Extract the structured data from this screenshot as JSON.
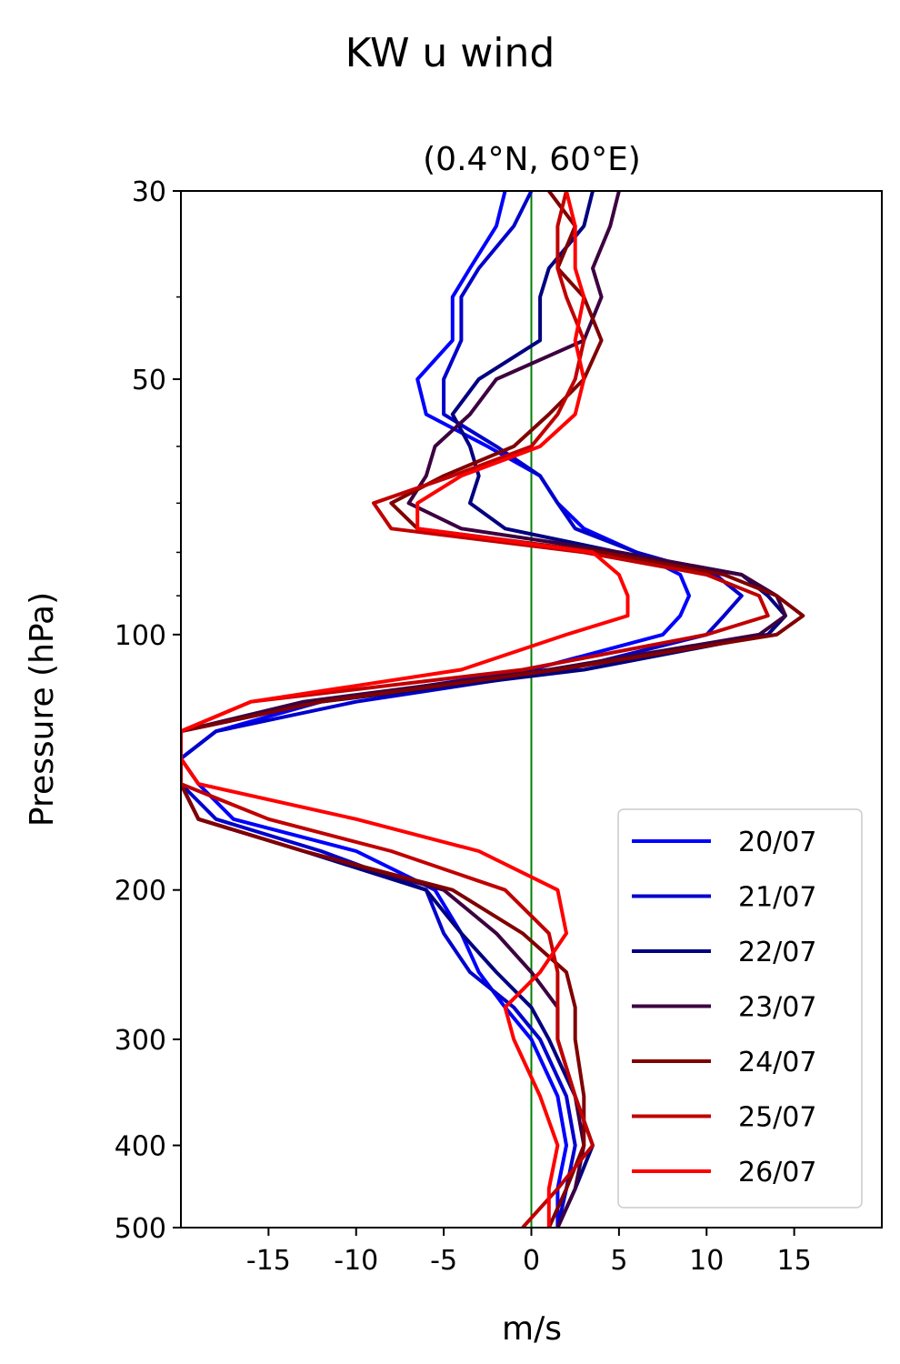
{
  "chart_data": {
    "type": "line",
    "title": "KW u wind",
    "subtitle": "(0.4°N, 60°E)",
    "xlabel": "m/s",
    "ylabel": "Pressure (hPa)",
    "xlim": [
      -20,
      20
    ],
    "ylim": [
      500,
      30
    ],
    "yscale": "log",
    "x_ticks": [
      -15,
      -10,
      -5,
      0,
      5,
      10,
      15
    ],
    "x_tick_labels": [
      "-15",
      "-10",
      "-5",
      "0",
      "5",
      "10",
      "15"
    ],
    "y_ticks": [
      30,
      50,
      100,
      200,
      300,
      400,
      500
    ],
    "y_tick_labels": [
      "30",
      "50",
      "100",
      "200",
      "300",
      "400",
      "500"
    ],
    "y_minor_ticks": [
      40,
      60,
      70,
      80,
      90
    ],
    "grid": false,
    "reference_line": {
      "x": 0,
      "color": "#008000"
    },
    "legend": {
      "position": "bottom-right"
    },
    "pressure": [
      30,
      33,
      37,
      40,
      45,
      50,
      55,
      60,
      65,
      70,
      75,
      80,
      85,
      90,
      95,
      100,
      110,
      120,
      130,
      140,
      150,
      165,
      180,
      200,
      225,
      250,
      275,
      300,
      350,
      400,
      450,
      500
    ],
    "series": [
      {
        "name": "20/07",
        "color": "#0000ff",
        "values": [
          -1.5,
          -2.0,
          -3.5,
          -4.5,
          -4.5,
          -6.5,
          -6.0,
          -2.5,
          0.5,
          1.5,
          3.0,
          6.0,
          8.5,
          9.0,
          8.5,
          7.5,
          0.0,
          -12.0,
          -18.0,
          -20.0,
          -19.0,
          -17.0,
          -10.0,
          -5.5,
          -4.0,
          -3.0,
          -1.5,
          0.0,
          1.5,
          2.0,
          1.5,
          1.5
        ]
      },
      {
        "name": "21/07",
        "color": "#0000cc",
        "values": [
          0.0,
          -1.0,
          -3.0,
          -4.0,
          -4.0,
          -5.0,
          -5.0,
          -2.0,
          0.5,
          1.5,
          2.5,
          6.0,
          10.5,
          12.0,
          11.0,
          10.0,
          2.0,
          -10.0,
          -18.0,
          -20.0,
          -20.0,
          -18.0,
          -12.0,
          -6.0,
          -5.0,
          -3.5,
          -1.0,
          0.5,
          2.0,
          2.5,
          2.0,
          1.5
        ]
      },
      {
        "name": "22/07",
        "color": "#000080",
        "values": [
          3.5,
          3.0,
          1.0,
          0.5,
          0.5,
          -3.0,
          -4.5,
          -3.5,
          -3.0,
          -3.5,
          -1.5,
          5.0,
          12.0,
          13.5,
          14.5,
          13.5,
          3.0,
          -12.0,
          -20.0,
          -20.0,
          -20.0,
          -19.0,
          -13.0,
          -6.0,
          -4.0,
          -2.0,
          0.0,
          1.0,
          2.5,
          3.5,
          2.5,
          1.5
        ]
      },
      {
        "name": "23/07",
        "color": "#3c0040",
        "values": [
          5.0,
          4.5,
          3.5,
          4.0,
          3.0,
          -2.0,
          -3.5,
          -5.5,
          -6.0,
          -7.0,
          -4.0,
          5.0,
          12.0,
          14.0,
          14.5,
          13.0,
          1.0,
          -13.0,
          -20.0,
          -20.0,
          -20.0,
          -19.0,
          -13.0,
          -5.0,
          -2.0,
          0.0,
          1.5,
          1.5,
          2.5,
          3.0,
          2.5,
          1.5
        ]
      },
      {
        "name": "24/07",
        "color": "#800000",
        "values": [
          1.0,
          2.5,
          1.5,
          3.0,
          4.0,
          3.0,
          1.0,
          -1.0,
          -5.0,
          -8.0,
          -6.5,
          4.0,
          11.0,
          14.0,
          15.5,
          14.0,
          1.5,
          -12.0,
          -20.0,
          -20.0,
          -20.0,
          -19.0,
          -13.0,
          -4.5,
          -0.5,
          2.0,
          2.5,
          2.5,
          3.0,
          3.0,
          2.0,
          1.0
        ]
      },
      {
        "name": "25/07",
        "color": "#c00000",
        "values": [
          2.0,
          1.5,
          1.5,
          2.0,
          3.0,
          2.5,
          1.5,
          0.0,
          -4.5,
          -9.0,
          -8.0,
          3.0,
          10.0,
          13.0,
          13.5,
          10.0,
          -0.5,
          -16.0,
          -20.0,
          -20.0,
          -20.0,
          -15.0,
          -8.0,
          -1.5,
          1.0,
          1.5,
          1.5,
          1.5,
          2.5,
          3.5,
          1.5,
          -0.5
        ]
      },
      {
        "name": "26/07",
        "color": "#ff0000",
        "values": [
          2.0,
          2.5,
          2.5,
          3.0,
          2.5,
          3.0,
          2.5,
          0.5,
          -4.0,
          -6.5,
          -6.5,
          3.5,
          5.0,
          5.5,
          5.5,
          2.0,
          -4.0,
          -16.0,
          -20.0,
          -20.0,
          -19.0,
          -10.0,
          -3.0,
          1.5,
          2.0,
          0.5,
          -1.5,
          -1.0,
          0.5,
          1.5,
          1.0,
          1.0
        ]
      }
    ]
  }
}
